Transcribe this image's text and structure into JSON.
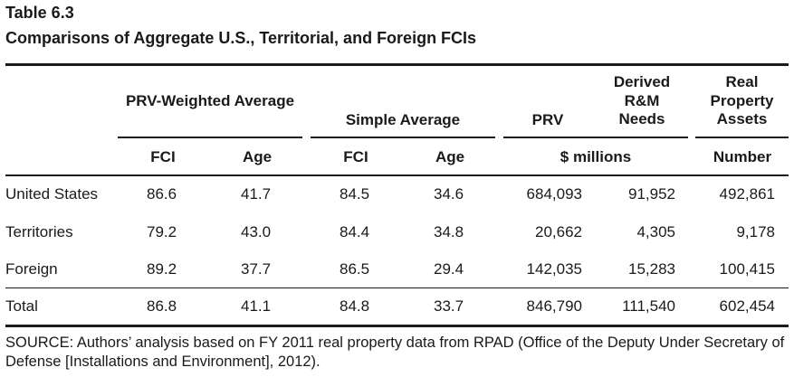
{
  "table": {
    "label": "Table 6.3",
    "title": "Comparisons of Aggregate U.S., Territorial, and Foreign FCIs",
    "group_headers": {
      "prv_weighted": "PRV-Weighted Average",
      "simple_average": "Simple Average",
      "prv": "PRV",
      "derived_rm": "Derived R&M Needs",
      "real_property": "Real Property Assets"
    },
    "sub_headers": {
      "fci_1": "FCI",
      "age_1": "Age",
      "fci_2": "FCI",
      "age_2": "Age",
      "millions": "$ millions",
      "number": "Number"
    },
    "rows": [
      {
        "label": "United States",
        "w_fci": "86.6",
        "w_age": "41.7",
        "s_fci": "84.5",
        "s_age": "34.6",
        "prv": "684,093",
        "rm": "91,952",
        "assets": "492,861"
      },
      {
        "label": "Territories",
        "w_fci": "79.2",
        "w_age": "43.0",
        "s_fci": "84.4",
        "s_age": "34.8",
        "prv": "20,662",
        "rm": "4,305",
        "assets": "9,178"
      },
      {
        "label": "Foreign",
        "w_fci": "89.2",
        "w_age": "37.7",
        "s_fci": "86.5",
        "s_age": "29.4",
        "prv": "142,035",
        "rm": "15,283",
        "assets": "100,415"
      },
      {
        "label": "Total",
        "w_fci": "86.8",
        "w_age": "41.1",
        "s_fci": "84.8",
        "s_age": "33.7",
        "prv": "846,790",
        "rm": "111,540",
        "assets": "602,454"
      }
    ],
    "source": "SOURCE: Authors’ analysis based on FY 2011 real property data from RPAD (Office of the Deputy Under Secretary of Defense [Installations and Environment], 2012)."
  }
}
